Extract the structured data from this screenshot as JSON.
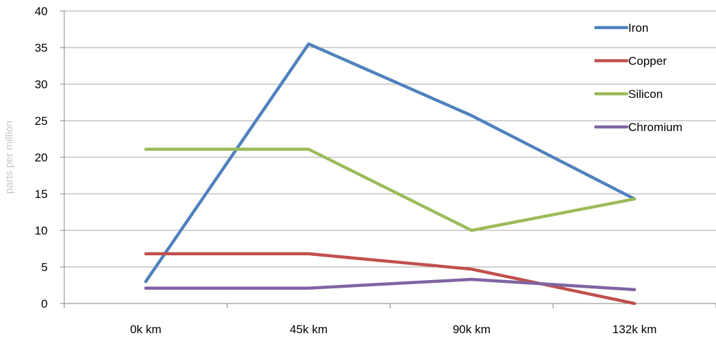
{
  "chart_data": {
    "type": "line",
    "title": "",
    "xlabel": "",
    "ylabel": "parts per million",
    "categories": [
      "0k km",
      "45k km",
      "90k km",
      "132k km"
    ],
    "ylim": [
      0,
      40
    ],
    "yticks": [
      0,
      5,
      10,
      15,
      20,
      25,
      30,
      35,
      40
    ],
    "grid": true,
    "legend_position": "right",
    "series": [
      {
        "name": "Iron",
        "color": "#4f81bd",
        "values": [
          3.0,
          35.5,
          25.7,
          14.3
        ]
      },
      {
        "name": "Copper",
        "color": "#c0504d",
        "values": [
          6.8,
          6.8,
          4.7,
          0.0
        ]
      },
      {
        "name": "Silicon",
        "color": "#9bbb59",
        "values": [
          21.1,
          21.1,
          10.0,
          14.3
        ]
      },
      {
        "name": "Chromium",
        "color": "#8064a2",
        "values": [
          2.1,
          2.1,
          3.3,
          1.9
        ]
      }
    ]
  }
}
